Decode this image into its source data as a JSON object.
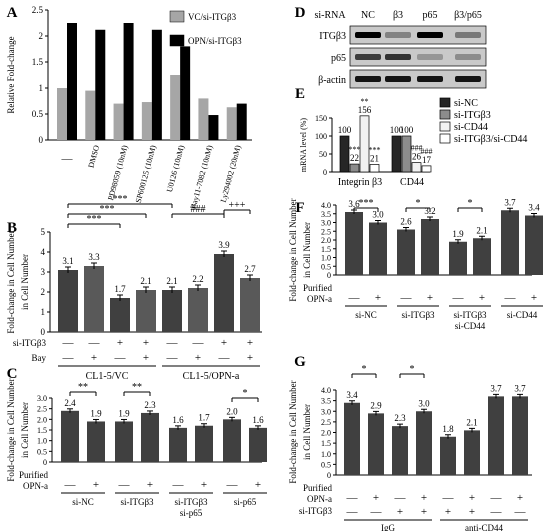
{
  "chart_data": [
    {
      "panel": "A",
      "type": "bar",
      "ylabel": "Relative Fold-change",
      "ylim": [
        0,
        2.5
      ],
      "yticks": [
        "0",
        "0.5",
        "1",
        "1.5",
        "2",
        "2.5"
      ],
      "categories": [
        "—",
        "DMSO",
        "PD98059 (10nM)",
        "SP600125 (10nM)",
        "U0126 (10nM)",
        "Bay11-7082 (10nM)",
        "Ly294002 (20nM)"
      ],
      "series": [
        {
          "name": "VC/si-ITGβ3",
          "color": "#a6a6a6",
          "values": [
            1.0,
            0.95,
            0.7,
            0.73,
            1.25,
            0.8,
            0.63
          ]
        },
        {
          "name": "OPN/si-ITGβ3",
          "color": "#000000",
          "values": [
            2.25,
            2.12,
            2.25,
            2.12,
            1.8,
            0.48,
            0.7
          ]
        }
      ],
      "legend_position": "top-right"
    },
    {
      "panel": "B",
      "type": "bar",
      "ylabel": "Fold-change in Cell Number",
      "ylim": [
        0,
        5
      ],
      "yticks": [
        "0",
        "1",
        "2",
        "3",
        "4",
        "5"
      ],
      "values": [
        3.1,
        3.3,
        1.7,
        2.1,
        2.1,
        2.2,
        3.9,
        2.7
      ],
      "labels": [
        "3.1",
        "3.3",
        "1.7",
        "2.1",
        "2.1",
        "2.2",
        "3.9",
        "2.7"
      ],
      "fills": [
        "#404040",
        "#595959",
        "#404040",
        "#595959",
        "#404040",
        "#595959",
        "#404040",
        "#595959"
      ],
      "row1_label": "si-ITGβ3",
      "row1": [
        "—",
        "—",
        "+",
        "+",
        "—",
        "—",
        "+",
        "+"
      ],
      "row2_label": "Bay",
      "row2": [
        "—",
        "+",
        "—",
        "+",
        "—",
        "+",
        "—",
        "+"
      ],
      "groups": [
        "CL1-5/VC",
        "CL1-5/OPN-a"
      ],
      "sig": [
        "***",
        "***",
        "***",
        "###",
        "+++"
      ]
    },
    {
      "panel": "C",
      "type": "bar",
      "ylabel": "Fold-change in Cell Number",
      "ylim": [
        0,
        3.0
      ],
      "yticks": [
        "0",
        "0.5",
        "1.0",
        "1.5",
        "2.0",
        "2.5",
        "3.0"
      ],
      "values": [
        2.4,
        1.9,
        1.9,
        2.3,
        1.6,
        1.7,
        2.0,
        1.6
      ],
      "labels": [
        "2.4",
        "1.9",
        "1.9",
        "2.3",
        "1.6",
        "1.7",
        "2.0",
        "1.6"
      ],
      "row_label": "Purified OPN-a",
      "row": [
        "—",
        "+",
        "—",
        "+",
        "—",
        "+",
        "—",
        "+"
      ],
      "groups": [
        "si-NC",
        "si-ITGβ3",
        "si-ITGβ3 si-p65",
        "si-p65"
      ],
      "sig": [
        "**",
        "**",
        "*"
      ]
    },
    {
      "panel": "E",
      "type": "bar",
      "ylabel": "mRNA level (%)",
      "ylim": [
        0,
        150
      ],
      "yticks": [
        "0",
        "50",
        "100",
        "150"
      ],
      "categories": [
        "Integrin β3",
        "CD44"
      ],
      "series": [
        {
          "name": "si-NC",
          "color": "#262626",
          "values": [
            100,
            100
          ]
        },
        {
          "name": "si-ITGβ3",
          "color": "#8c8c8c",
          "values": [
            22,
            100
          ]
        },
        {
          "name": "si-CD44",
          "color": "#f2f2f2",
          "values": [
            156,
            26
          ]
        },
        {
          "name": "si-ITGβ3/si-CD44",
          "color": "#ffffff",
          "values": [
            21,
            17
          ]
        }
      ],
      "labels": [
        [
          "100",
          "22",
          "156",
          "21"
        ],
        [
          "100",
          "100",
          "26",
          "17"
        ]
      ],
      "sig": [
        [
          "",
          "***",
          "**",
          "***"
        ],
        [
          "",
          "",
          "###",
          "###"
        ]
      ]
    },
    {
      "panel": "F",
      "type": "bar",
      "ylabel": "Fold-change in Cell Number",
      "ylim": [
        0,
        4.0
      ],
      "yticks": [
        "0",
        "0.5",
        "1.0",
        "1.5",
        "2.0",
        "2.5",
        "3.0",
        "3.5",
        "4.0"
      ],
      "values": [
        3.6,
        3.0,
        2.6,
        3.2,
        1.9,
        2.1,
        3.7,
        3.4
      ],
      "labels": [
        "3.6",
        "3.0",
        "2.6",
        "3.2",
        "1.9",
        "2.1",
        "3.7",
        "3.4"
      ],
      "row_label": "Purified OPN-a",
      "row": [
        "—",
        "+",
        "—",
        "+",
        "—",
        "+",
        "—",
        "+"
      ],
      "groups": [
        "si-NC",
        "si-ITGβ3",
        "si-ITGβ3 si-CD44",
        "si-CD44"
      ],
      "sig": [
        "***",
        "*",
        "*"
      ]
    },
    {
      "panel": "G",
      "type": "bar",
      "ylabel": "Fold-change in Cell Number",
      "ylim": [
        0,
        4.0
      ],
      "yticks": [
        "0",
        "0.5",
        "1.0",
        "1.5",
        "2.0",
        "2.5",
        "3.0",
        "3.5",
        "4.0"
      ],
      "values": [
        3.4,
        2.9,
        2.3,
        3.0,
        1.8,
        2.1,
        3.7,
        3.7
      ],
      "labels": [
        "3.4",
        "2.9",
        "2.3",
        "3.0",
        "1.8",
        "2.1",
        "3.7",
        "3.7"
      ],
      "row1_label": "Purified OPN-a",
      "row1": [
        "—",
        "+",
        "—",
        "+",
        "—",
        "+",
        "—",
        "+"
      ],
      "row2_label": "si-ITGβ3",
      "row2": [
        "—",
        "—",
        "+",
        "+",
        "+",
        "+",
        "—",
        "—"
      ],
      "groups": [
        "IgG",
        "anti-CD44"
      ],
      "sig": [
        "*",
        "*"
      ]
    }
  ],
  "blot": {
    "panel": "D",
    "header_label": "si-RNA",
    "lanes": [
      "NC",
      "β3",
      "p65",
      "β3/p65"
    ],
    "rows": [
      "ITGβ3",
      "p65",
      "β-actin"
    ]
  },
  "panel_letters": [
    "A",
    "B",
    "C",
    "D",
    "E",
    "F",
    "G"
  ]
}
